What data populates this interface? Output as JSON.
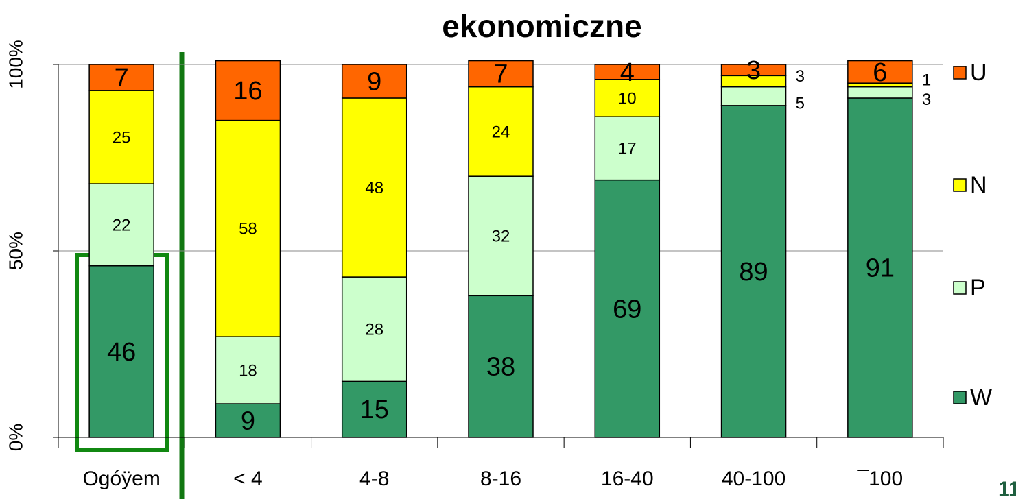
{
  "chart_data": {
    "type": "stacked_bar",
    "title": "ekonomiczne",
    "categories": [
      "Ogóÿem",
      "< 4",
      "4-8",
      "8-16",
      "16-40",
      "40-100",
      "¯100"
    ],
    "series": [
      {
        "name": "W",
        "color": "#339966",
        "values": [
          46,
          9,
          15,
          38,
          69,
          89,
          91
        ]
      },
      {
        "name": "P",
        "color": "#ccffcc",
        "values": [
          22,
          18,
          28,
          32,
          17,
          5,
          3
        ]
      },
      {
        "name": "N",
        "color": "#ffff00",
        "values": [
          25,
          58,
          48,
          24,
          10,
          3,
          1
        ]
      },
      {
        "name": "U",
        "color": "#ff6600",
        "values": [
          7,
          16,
          9,
          7,
          4,
          3,
          6
        ]
      }
    ],
    "ylim": [
      0,
      100
    ],
    "yticks": [
      {
        "value": 0,
        "label": "0%"
      },
      {
        "value": 50,
        "label": "50%"
      },
      {
        "value": 100,
        "label": "100%"
      }
    ],
    "grid": true,
    "page_number": "11"
  }
}
